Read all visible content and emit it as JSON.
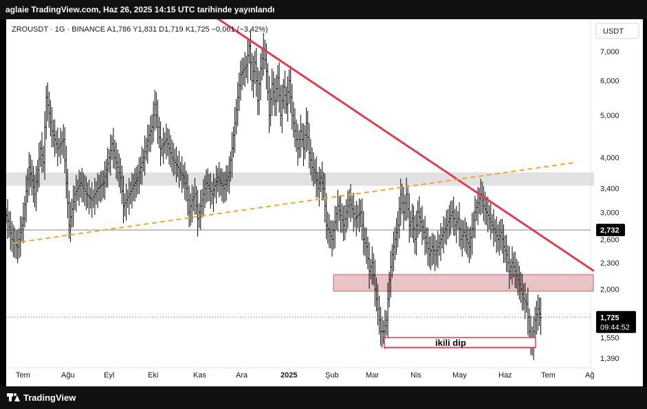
{
  "header": {
    "publish_line": "aglaie TradingView.com, Haz 26, 2025 14:15 UTC tarihinde yayınlandı"
  },
  "legend": {
    "symbol_line": "ZROUSDT · 1G · BINANCE  A1,786  Y1,831  D1,719  K1,725  −0,061 (−3,42%)"
  },
  "currency_button": "USDT",
  "footer": {
    "brand": "TradingView"
  },
  "chart_data": {
    "type": "candlestick",
    "symbol": "ZROUSDT",
    "interval": "1G",
    "exchange": "BINANCE",
    "ohlc_last": {
      "open": "1,786",
      "high": "1,831",
      "low": "1,719",
      "close": "1,725",
      "change": "−0,061",
      "change_pct": "−3,42%"
    },
    "y_scale": "log",
    "y_ticks": [
      "7,000",
      "6,000",
      "5,000",
      "4,000",
      "3,400",
      "3,000",
      "2,600",
      "2,300",
      "2,000",
      "1,750",
      "1,550",
      "1,390"
    ],
    "y_tick_values": [
      7.0,
      6.0,
      5.0,
      4.0,
      3.4,
      3.0,
      2.6,
      2.3,
      2.0,
      1.75,
      1.55,
      1.39
    ],
    "x_ticks": [
      "Tem",
      "Ağu",
      "Eyl",
      "Eki",
      "Kas",
      "Ara",
      "2025",
      "Şub",
      "Mar",
      "Nis",
      "May",
      "Haz",
      "Tem",
      "Ağ"
    ],
    "bold_x_tick": "2025",
    "price_label": {
      "value": "1,725",
      "countdown": "09:44:52",
      "color": "#000000"
    },
    "horizontal_line_label": {
      "value": "2,732",
      "color": "#000000"
    },
    "candle_color": "#000000",
    "price_path": [
      [
        0,
        2.95
      ],
      [
        2,
        2.6
      ],
      [
        4,
        2.5
      ],
      [
        6,
        2.9
      ],
      [
        8,
        3.8
      ],
      [
        10,
        3.3
      ],
      [
        12,
        4.2
      ],
      [
        13,
        3.9
      ],
      [
        14,
        5.5
      ],
      [
        16,
        4.6
      ],
      [
        18,
        4.2
      ],
      [
        20,
        4.4
      ],
      [
        21,
        3.5
      ],
      [
        22,
        2.8
      ],
      [
        24,
        3.3
      ],
      [
        26,
        3.5
      ],
      [
        28,
        3.3
      ],
      [
        30,
        3.2
      ],
      [
        32,
        3.4
      ],
      [
        34,
        3.5
      ],
      [
        36,
        4.0
      ],
      [
        37,
        4.3
      ],
      [
        38,
        4.0
      ],
      [
        40,
        3.6
      ],
      [
        41,
        3.1
      ],
      [
        42,
        3.2
      ],
      [
        44,
        3.4
      ],
      [
        46,
        3.6
      ],
      [
        48,
        4.0
      ],
      [
        50,
        4.5
      ],
      [
        51,
        4.7
      ],
      [
        52,
        5.3
      ],
      [
        53,
        4.7
      ],
      [
        54,
        4.2
      ],
      [
        56,
        4.4
      ],
      [
        58,
        4.0
      ],
      [
        60,
        3.8
      ],
      [
        62,
        3.6
      ],
      [
        63,
        3.4
      ],
      [
        64,
        3.0
      ],
      [
        65,
        3.2
      ],
      [
        66,
        3.3
      ],
      [
        67,
        2.9
      ],
      [
        68,
        3.1
      ],
      [
        70,
        3.5
      ],
      [
        72,
        3.3
      ],
      [
        74,
        3.6
      ],
      [
        76,
        3.4
      ],
      [
        78,
        3.7
      ],
      [
        79,
        4.2
      ],
      [
        80,
        4.8
      ],
      [
        82,
        6.2
      ],
      [
        84,
        6.5
      ],
      [
        85,
        7.2
      ],
      [
        86,
        6.0
      ],
      [
        87,
        6.6
      ],
      [
        88,
        5.4
      ],
      [
        89,
        6.4
      ],
      [
        90,
        7.1
      ],
      [
        91,
        6.3
      ],
      [
        92,
        5.0
      ],
      [
        93,
        5.9
      ],
      [
        94,
        5.4
      ],
      [
        95,
        6.1
      ],
      [
        96,
        5.0
      ],
      [
        97,
        5.8
      ],
      [
        98,
        5.3
      ],
      [
        99,
        6.0
      ],
      [
        100,
        5.0
      ],
      [
        101,
        4.6
      ],
      [
        102,
        4.2
      ],
      [
        103,
        4.6
      ],
      [
        104,
        4.2
      ],
      [
        105,
        4.8
      ],
      [
        106,
        4.1
      ],
      [
        107,
        3.8
      ],
      [
        108,
        3.7
      ],
      [
        109,
        3.4
      ],
      [
        110,
        3.6
      ],
      [
        111,
        3.4
      ],
      [
        112,
        2.8
      ],
      [
        113,
        2.7
      ],
      [
        114,
        2.6
      ],
      [
        116,
        3.1
      ],
      [
        118,
        2.8
      ],
      [
        120,
        3.2
      ],
      [
        122,
        2.9
      ],
      [
        124,
        3.0
      ],
      [
        125,
        2.6
      ],
      [
        126,
        2.5
      ],
      [
        127,
        2.2
      ],
      [
        128,
        2.3
      ],
      [
        129,
        2.0
      ],
      [
        130,
        1.8
      ],
      [
        131,
        1.6
      ],
      [
        132,
        1.6
      ],
      [
        133,
        1.7
      ],
      [
        134,
        2.1
      ],
      [
        135,
        2.4
      ],
      [
        136,
        2.6
      ],
      [
        137,
        2.8
      ],
      [
        138,
        3.3
      ],
      [
        139,
        3.0
      ],
      [
        140,
        3.3
      ],
      [
        141,
        2.8
      ],
      [
        142,
        2.9
      ],
      [
        143,
        2.6
      ],
      [
        144,
        3.0
      ],
      [
        146,
        2.7
      ],
      [
        148,
        2.4
      ],
      [
        149,
        2.5
      ],
      [
        150,
        2.4
      ],
      [
        152,
        2.6
      ],
      [
        154,
        2.8
      ],
      [
        156,
        3.0
      ],
      [
        157,
        2.8
      ],
      [
        158,
        2.9
      ],
      [
        159,
        2.6
      ],
      [
        160,
        2.7
      ],
      [
        162,
        2.5
      ],
      [
        164,
        3.0
      ],
      [
        166,
        3.3
      ],
      [
        167,
        3.1
      ],
      [
        168,
        3.0
      ],
      [
        170,
        2.8
      ],
      [
        172,
        2.6
      ],
      [
        173,
        2.7
      ],
      [
        174,
        2.5
      ],
      [
        175,
        2.4
      ],
      [
        176,
        2.2
      ],
      [
        177,
        2.3
      ],
      [
        178,
        2.2
      ],
      [
        179,
        2.1
      ],
      [
        180,
        2.0
      ],
      [
        181,
        1.9
      ],
      [
        182,
        1.85
      ],
      [
        183,
        1.6
      ],
      [
        184,
        1.5
      ],
      [
        185,
        1.7
      ],
      [
        186,
        1.8
      ],
      [
        187,
        1.72
      ]
    ],
    "path_x_range": [
      0,
      190
    ],
    "drawings": {
      "descending_trendline": {
        "color": "#e03c50",
        "from": [
          "Haz 2024 sonu",
          "8,5"
        ],
        "to": [
          "Tem 2025",
          "2,2"
        ]
      },
      "ascending_dashed_trendline": {
        "color": "#f5a623",
        "from": [
          "Tem 2024",
          "2,55"
        ],
        "to": [
          "Ağu 2025",
          "3,9"
        ]
      },
      "resistance_zone": {
        "color": "#dcdcdc",
        "low": "3,45",
        "high": "3,7"
      },
      "support_zone": {
        "color": "#e8c4c8",
        "low": "1,98",
        "high": "2,16"
      },
      "horizontal_line": {
        "value": "2,732",
        "color": "#888888"
      },
      "double_bottom_box": {
        "label": "ikili dip",
        "low": "1,47",
        "high": "1,55",
        "color": "#e03c50"
      }
    }
  }
}
